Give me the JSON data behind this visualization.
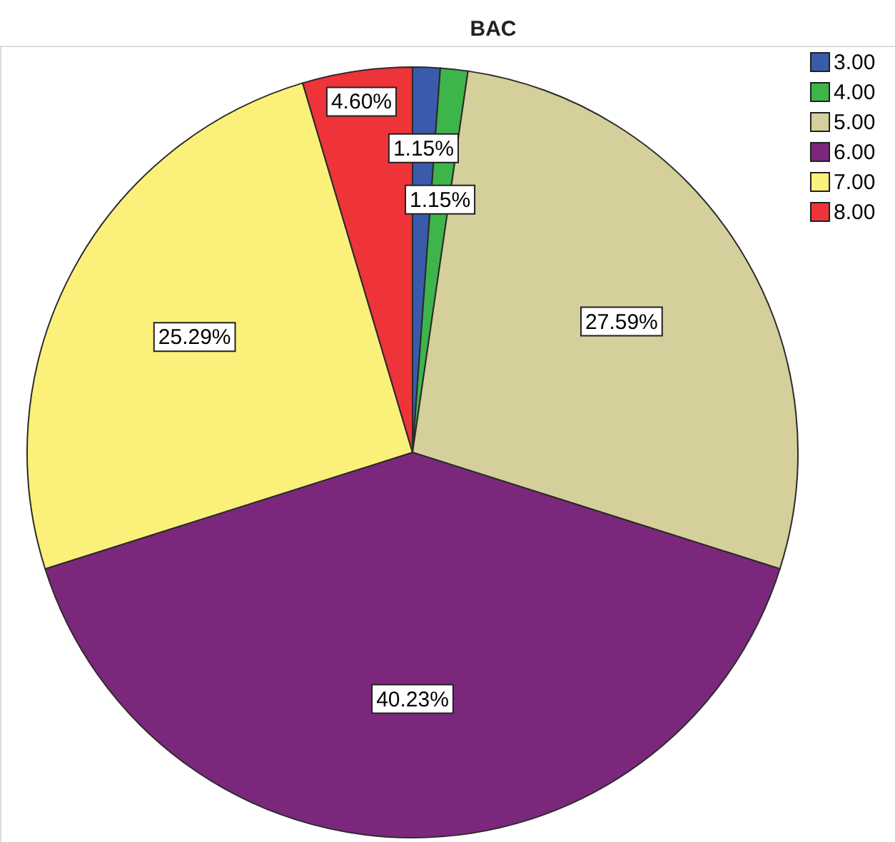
{
  "chart_data": {
    "type": "pie",
    "title": "BAC",
    "categories": [
      "3.00",
      "4.00",
      "5.00",
      "6.00",
      "7.00",
      "8.00"
    ],
    "values": [
      1.15,
      1.15,
      27.59,
      40.23,
      25.29,
      4.6
    ],
    "colors": [
      "#3a5bab",
      "#3db54a",
      "#d5cf9c",
      "#7b287c",
      "#fbf17a",
      "#ee3439"
    ],
    "value_labels": [
      "1.15%",
      "1.15%",
      "27.59%",
      "40.23%",
      "25.29%",
      "4.60%"
    ],
    "legend": "top right"
  }
}
